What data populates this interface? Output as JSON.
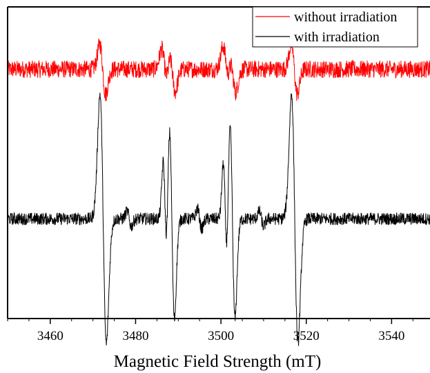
{
  "chart_data": {
    "type": "line",
    "title": "",
    "xlabel": "Magnetic Field Strength (mT)",
    "ylabel": "",
    "xlim": [
      3450,
      3549
    ],
    "x_ticks": [
      3460,
      3480,
      3500,
      3520,
      3540
    ],
    "y_ticks_labeled": false,
    "grid": false,
    "legend_position": "top-right",
    "series": [
      {
        "name": "without irradiation",
        "color": "#ff0000",
        "offset": 9.0,
        "noise": 0.35,
        "peaks": [
          {
            "center": 3472.3,
            "amplitude": 1.0,
            "width": 0.7
          },
          {
            "center": 3486.8,
            "amplitude": 0.8,
            "width": 0.7
          },
          {
            "center": 3488.6,
            "amplitude": 0.9,
            "width": 0.7
          },
          {
            "center": 3501.2,
            "amplitude": 0.9,
            "width": 0.7
          },
          {
            "center": 3502.8,
            "amplitude": 0.9,
            "width": 0.7
          },
          {
            "center": 3517.2,
            "amplitude": 1.0,
            "width": 0.7
          }
        ]
      },
      {
        "name": "with irradiation",
        "color": "#000000",
        "offset": 3.0,
        "noise": 0.25,
        "peaks": [
          {
            "center": 3472.4,
            "amplitude": 5.0,
            "width": 0.75
          },
          {
            "center": 3486.9,
            "amplitude": 2.2,
            "width": 0.45
          },
          {
            "center": 3488.5,
            "amplitude": 4.0,
            "width": 0.6
          },
          {
            "center": 3501.0,
            "amplitude": 2.2,
            "width": 0.45
          },
          {
            "center": 3502.7,
            "amplitude": 4.0,
            "width": 0.6
          },
          {
            "center": 3517.3,
            "amplitude": 5.0,
            "width": 0.75
          },
          {
            "center": 3478.5,
            "amplitude": 0.3,
            "width": 0.5
          },
          {
            "center": 3495.0,
            "amplitude": 0.4,
            "width": 0.5
          },
          {
            "center": 3509.5,
            "amplitude": 0.3,
            "width": 0.5
          }
        ]
      }
    ]
  }
}
